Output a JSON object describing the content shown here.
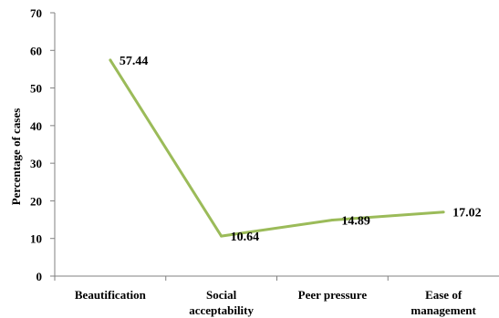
{
  "chart_data": {
    "type": "line",
    "categories": [
      [
        "Beautification"
      ],
      [
        "Social",
        "acceptability"
      ],
      [
        "Peer pressure"
      ],
      [
        "Ease of",
        "management"
      ]
    ],
    "series": [
      {
        "values": [
          57.44,
          10.64,
          14.89,
          17.02
        ],
        "labels": [
          "57.44",
          "10.64",
          "14.89",
          "17.02"
        ],
        "color": "#9BBB59"
      }
    ],
    "xlabel": "",
    "ylabel": "Percentage of cases",
    "ylim": [
      0,
      70
    ],
    "yticks": [
      0,
      10,
      20,
      30,
      40,
      50,
      60,
      70
    ],
    "grid": false,
    "legend": "none"
  }
}
